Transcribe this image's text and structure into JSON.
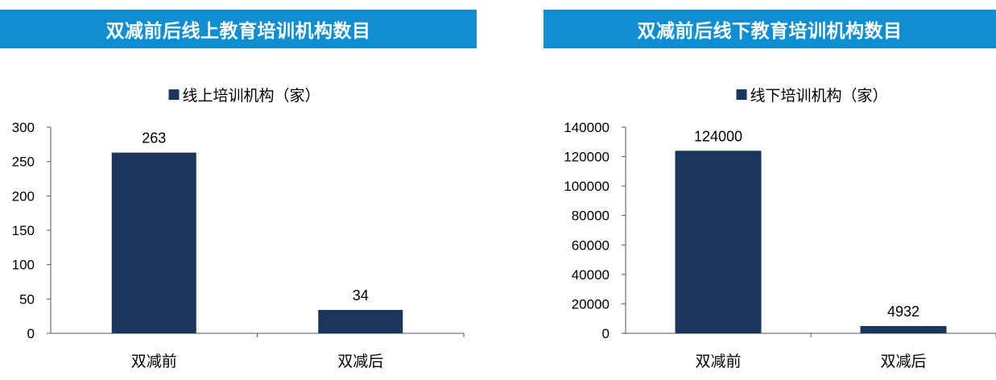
{
  "bar_color": "#1b365d",
  "header_color": "#0f8fd1",
  "chart_data": [
    {
      "type": "bar",
      "title": "双减前后线上教育培训机构数目",
      "legend": "线上培训机构（家）",
      "legend_position": "top",
      "categories": [
        "双减前",
        "双减后"
      ],
      "series": [
        {
          "name": "线上培训机构（家）",
          "values": [
            263,
            34
          ]
        }
      ],
      "ylim": [
        0,
        300
      ],
      "yticks": [
        "0",
        "50",
        "100",
        "150",
        "200",
        "250",
        "300"
      ],
      "data_labels": [
        "263",
        "34"
      ],
      "grid": false
    },
    {
      "type": "bar",
      "title": "双减前后线下教育培训机构数目",
      "legend": "线下培训机构（家）",
      "legend_position": "top",
      "categories": [
        "双减前",
        "双减后"
      ],
      "series": [
        {
          "name": "线下培训机构（家）",
          "values": [
            124000,
            4932
          ]
        }
      ],
      "ylim": [
        0,
        140000
      ],
      "yticks": [
        "0",
        "20000",
        "40000",
        "60000",
        "80000",
        "100000",
        "120000",
        "140000"
      ],
      "data_labels": [
        "124000",
        "4932"
      ],
      "grid": false
    }
  ]
}
